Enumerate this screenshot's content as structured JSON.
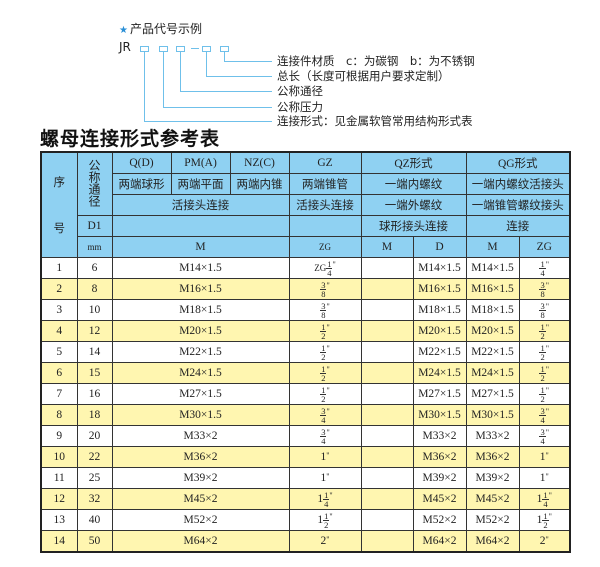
{
  "code_example": {
    "title": "产品代号示例",
    "prefix": "JR",
    "labels": [
      "连接件材质　c：为碳钢　b：为不锈钢",
      "总长（长度可根据用户要求定制）",
      "公称通径",
      "公称压力",
      "连接形式：见金属软管常用结构形式表"
    ]
  },
  "table_title": "螺母连接形式参考表",
  "header": {
    "seq": [
      "序",
      "号"
    ],
    "dn": "公称通径",
    "qd": "Q(D)",
    "pm": "PM(A)",
    "nz": "NZ(C)",
    "gz": "GZ",
    "qz": "QZ形式",
    "qg": "QG形式",
    "r2": [
      "两端球形",
      "两端平面",
      "两端内锥",
      "两端锥管",
      "一端内螺纹",
      "一端内螺纹活接头"
    ],
    "r3": [
      "活接头连接",
      "活接头连接",
      "一端外螺纹",
      "一端锥管螺纹接头"
    ],
    "d1": "D1",
    "r4": [
      "球形接头连接",
      "连接"
    ],
    "mm": "mm",
    "r5": [
      "M",
      "ZG",
      "M",
      "D",
      "M",
      "ZG"
    ]
  },
  "rows": [
    {
      "no": "1",
      "dn": "6",
      "m": "M14×1.5",
      "zg": {
        "pre": "ZG",
        "whole": "",
        "num": "1",
        "den": "4"
      },
      "qz_m": "",
      "qz_d": "M14×1.5",
      "qg_m": "M14×1.5",
      "qg_zg": {
        "pre": "",
        "whole": "",
        "num": "1",
        "den": "4"
      }
    },
    {
      "no": "2",
      "dn": "8",
      "m": "M16×1.5",
      "zg": {
        "pre": "",
        "whole": "",
        "num": "3",
        "den": "8"
      },
      "qz_m": "",
      "qz_d": "M16×1.5",
      "qg_m": "M16×1.5",
      "qg_zg": {
        "pre": "",
        "whole": "",
        "num": "3",
        "den": "8"
      }
    },
    {
      "no": "3",
      "dn": "10",
      "m": "M18×1.5",
      "zg": {
        "pre": "",
        "whole": "",
        "num": "3",
        "den": "8"
      },
      "qz_m": "",
      "qz_d": "M18×1.5",
      "qg_m": "M18×1.5",
      "qg_zg": {
        "pre": "",
        "whole": "",
        "num": "3",
        "den": "8"
      }
    },
    {
      "no": "4",
      "dn": "12",
      "m": "M20×1.5",
      "zg": {
        "pre": "",
        "whole": "",
        "num": "1",
        "den": "2"
      },
      "qz_m": "",
      "qz_d": "M20×1.5",
      "qg_m": "M20×1.5",
      "qg_zg": {
        "pre": "",
        "whole": "",
        "num": "1",
        "den": "2"
      }
    },
    {
      "no": "5",
      "dn": "14",
      "m": "M22×1.5",
      "zg": {
        "pre": "",
        "whole": "",
        "num": "1",
        "den": "2"
      },
      "qz_m": "",
      "qz_d": "M22×1.5",
      "qg_m": "M22×1.5",
      "qg_zg": {
        "pre": "",
        "whole": "",
        "num": "1",
        "den": "2"
      }
    },
    {
      "no": "6",
      "dn": "15",
      "m": "M24×1.5",
      "zg": {
        "pre": "",
        "whole": "",
        "num": "1",
        "den": "2"
      },
      "qz_m": "",
      "qz_d": "M24×1.5",
      "qg_m": "M24×1.5",
      "qg_zg": {
        "pre": "",
        "whole": "",
        "num": "1",
        "den": "2"
      }
    },
    {
      "no": "7",
      "dn": "16",
      "m": "M27×1.5",
      "zg": {
        "pre": "",
        "whole": "",
        "num": "1",
        "den": "2"
      },
      "qz_m": "",
      "qz_d": "M27×1.5",
      "qg_m": "M27×1.5",
      "qg_zg": {
        "pre": "",
        "whole": "",
        "num": "1",
        "den": "2"
      }
    },
    {
      "no": "8",
      "dn": "18",
      "m": "M30×1.5",
      "zg": {
        "pre": "",
        "whole": "",
        "num": "3",
        "den": "4"
      },
      "qz_m": "",
      "qz_d": "M30×1.5",
      "qg_m": "M30×1.5",
      "qg_zg": {
        "pre": "",
        "whole": "",
        "num": "3",
        "den": "4"
      }
    },
    {
      "no": "9",
      "dn": "20",
      "m": "M33×2",
      "zg": {
        "pre": "",
        "whole": "",
        "num": "3",
        "den": "4"
      },
      "qz_m": "",
      "qz_d": "M33×2",
      "qg_m": "M33×2",
      "qg_zg": {
        "pre": "",
        "whole": "",
        "num": "3",
        "den": "4"
      }
    },
    {
      "no": "10",
      "dn": "22",
      "m": "M36×2",
      "zg": {
        "pre": "",
        "whole": "1",
        "num": "",
        "den": ""
      },
      "qz_m": "",
      "qz_d": "M36×2",
      "qg_m": "M36×2",
      "qg_zg": {
        "pre": "",
        "whole": "1",
        "num": "",
        "den": ""
      }
    },
    {
      "no": "11",
      "dn": "25",
      "m": "M39×2",
      "zg": {
        "pre": "",
        "whole": "1",
        "num": "",
        "den": ""
      },
      "qz_m": "",
      "qz_d": "M39×2",
      "qg_m": "M39×2",
      "qg_zg": {
        "pre": "",
        "whole": "1",
        "num": "",
        "den": ""
      }
    },
    {
      "no": "12",
      "dn": "32",
      "m": "M45×2",
      "zg": {
        "pre": "",
        "whole": "1",
        "num": "1",
        "den": "4"
      },
      "qz_m": "",
      "qz_d": "M45×2",
      "qg_m": "M45×2",
      "qg_zg": {
        "pre": "",
        "whole": "1",
        "num": "1",
        "den": "4"
      }
    },
    {
      "no": "13",
      "dn": "40",
      "m": "M52×2",
      "zg": {
        "pre": "",
        "whole": "1",
        "num": "1",
        "den": "2"
      },
      "qz_m": "",
      "qz_d": "M52×2",
      "qg_m": "M52×2",
      "qg_zg": {
        "pre": "",
        "whole": "1",
        "num": "1",
        "den": "2"
      }
    },
    {
      "no": "14",
      "dn": "50",
      "m": "M64×2",
      "zg": {
        "pre": "",
        "whole": "2",
        "num": "",
        "den": ""
      },
      "qz_m": "",
      "qz_d": "M64×2",
      "qg_m": "M64×2",
      "qg_zg": {
        "pre": "",
        "whole": "2",
        "num": "",
        "den": ""
      }
    }
  ],
  "inch_mark": "\"",
  "colors": {
    "header_bg": "#8fd1f2",
    "alt_row": "#fff6b0",
    "diagram_line": "#6fc0ea",
    "star": "#2a8fd6"
  }
}
